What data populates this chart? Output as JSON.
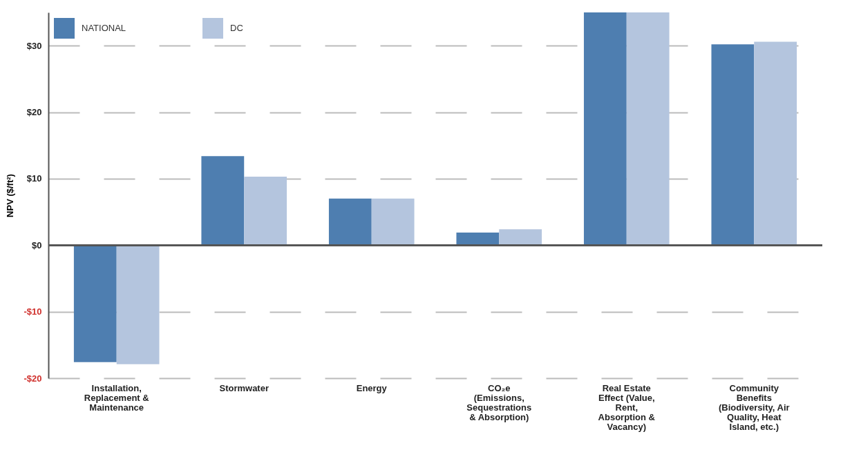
{
  "chart_data": {
    "type": "bar",
    "ylabel": "NPV ($/ft²)",
    "categories": [
      "Installation,\nReplacement &\nMaintenance",
      "Stormwater",
      "Energy",
      "CO₂e\n(Emissions,\nSequestrations\n& Absorption)",
      "Real Estate\nEffect (Value,\nRent,\nAbsorption &\nVacancy)",
      "Community\nBenefits\n(Biodiversity, Air\nQuality, Heat\nIsland, etc.)"
    ],
    "series": [
      {
        "name": "NATIONAL",
        "color": "#4e7eb0",
        "values": [
          -17.6,
          13.4,
          7.0,
          1.9,
          35,
          30.2
        ]
      },
      {
        "name": "DC",
        "color": "#b4c5de",
        "values": [
          -17.9,
          10.3,
          7.0,
          2.4,
          35,
          30.6
        ]
      }
    ],
    "ylim": [
      -20,
      35
    ],
    "yticks": [
      {
        "value": -20,
        "label": "-$20"
      },
      {
        "value": -10,
        "label": "-$10"
      },
      {
        "value": 0,
        "label": "$0"
      },
      {
        "value": 10,
        "label": "$10"
      },
      {
        "value": 20,
        "label": "$20"
      },
      {
        "value": 30,
        "label": "$30"
      }
    ],
    "ref_lines": [
      {
        "axis": "y",
        "value": 0
      }
    ],
    "grid": "y",
    "legend": "top left"
  }
}
